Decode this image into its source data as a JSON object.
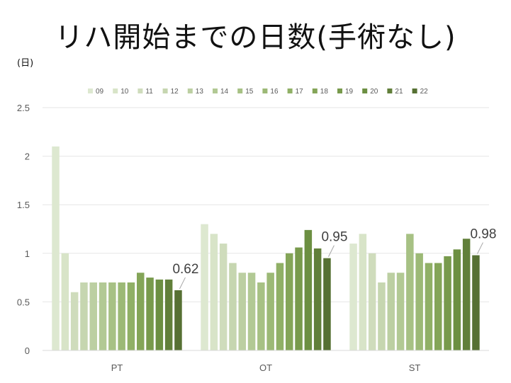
{
  "title": "リハ開始までの日数(手術なし)",
  "unit_label": "(日)",
  "colors": [
    "#dde8d0",
    "#d8e4c8",
    "#cfdcbc",
    "#c6d6b0",
    "#bccfa2",
    "#b2c994",
    "#a7c184",
    "#9cb976",
    "#90b066",
    "#84a558",
    "#789a4c",
    "#6c8f42",
    "#617f3a",
    "#567033"
  ],
  "chart_data": {
    "type": "bar",
    "categories": [
      "PT",
      "OT",
      "ST"
    ],
    "series": [
      {
        "name": "09",
        "values": [
          2.1,
          1.3,
          1.1
        ]
      },
      {
        "name": "10",
        "values": [
          1.0,
          1.2,
          1.2
        ]
      },
      {
        "name": "11",
        "values": [
          0.6,
          1.1,
          1.0
        ]
      },
      {
        "name": "12",
        "values": [
          0.7,
          0.9,
          0.7
        ]
      },
      {
        "name": "13",
        "values": [
          0.7,
          0.8,
          0.8
        ]
      },
      {
        "name": "14",
        "values": [
          0.7,
          0.8,
          0.8
        ]
      },
      {
        "name": "15",
        "values": [
          0.7,
          0.7,
          1.2
        ]
      },
      {
        "name": "16",
        "values": [
          0.7,
          0.8,
          1.0
        ]
      },
      {
        "name": "17",
        "values": [
          0.7,
          0.9,
          0.9
        ]
      },
      {
        "name": "18",
        "values": [
          0.8,
          1.0,
          0.9
        ]
      },
      {
        "name": "19",
        "values": [
          0.75,
          1.06,
          0.97
        ]
      },
      {
        "name": "20",
        "values": [
          0.73,
          1.24,
          1.04
        ]
      },
      {
        "name": "21",
        "values": [
          0.73,
          1.05,
          1.15
        ]
      },
      {
        "name": "22",
        "values": [
          0.62,
          0.95,
          0.98
        ]
      }
    ],
    "data_labels": [
      "0.62",
      "0.95",
      "0.98"
    ],
    "ylim": [
      0,
      2.5
    ],
    "yticks": [
      0,
      0.5,
      1,
      1.5,
      2,
      2.5
    ],
    "ytick_labels": [
      "0",
      "0.5",
      "1",
      "1.5",
      "2",
      "2.5"
    ],
    "grid": true,
    "legend_position": "top",
    "xlabel": "",
    "ylabel": ""
  }
}
